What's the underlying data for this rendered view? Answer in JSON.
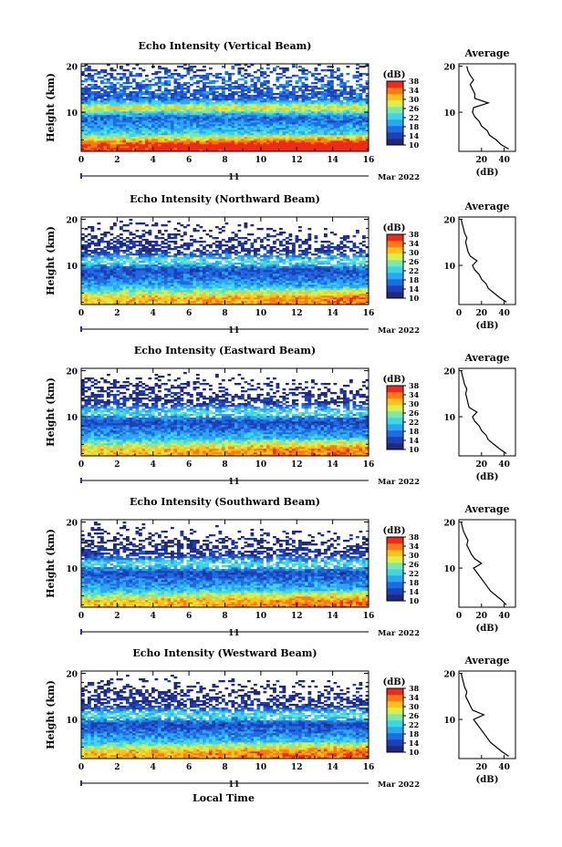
{
  "figure": {
    "xlabel": "Local Time",
    "colorbar_unit": "(dB)",
    "colorbar_ticks": [
      "38",
      "34",
      "30",
      "26",
      "22",
      "18",
      "14",
      "10"
    ],
    "colormap": [
      "#202a7a",
      "#1f3fb8",
      "#1f6be0",
      "#2aa6f2",
      "#3cd6e6",
      "#7be8b0",
      "#d8f04a",
      "#ffc21a",
      "#ff7a10",
      "#f02a1a"
    ],
    "missing_color": "#ffffff"
  },
  "chart_data": [
    {
      "type": "heatmap",
      "title": "Echo Intensity (Vertical Beam)",
      "ylabel": "Height (km)",
      "xlim": [
        0,
        16
      ],
      "ylim": [
        1.5,
        20.5
      ],
      "x_ticks": [
        "0",
        "2",
        "4",
        "6",
        "8",
        "10",
        "12",
        "14",
        "16"
      ],
      "y_ticks": [
        "20",
        "10"
      ],
      "date_label": "11",
      "date_suffix": "Mar 2022",
      "colorbar_range": [
        10,
        38
      ],
      "height_levels_km": [
        3,
        5,
        7,
        9,
        11,
        13,
        15,
        17,
        19
      ],
      "mean_db_by_height": [
        36,
        24,
        19,
        17,
        30,
        16,
        16,
        17,
        14
      ],
      "profile": {
        "title": "Average",
        "xlabel": "(dB)",
        "x_ticks": [
          "20",
          "40"
        ],
        "xlim": [
          0,
          50
        ],
        "heights_km": [
          2,
          3,
          4,
          5,
          6,
          7,
          8,
          9,
          10,
          11,
          12,
          13,
          14,
          15,
          16,
          17,
          18,
          19,
          20
        ],
        "db": [
          44,
          37,
          33,
          27,
          25,
          20,
          18,
          14,
          12,
          13,
          26,
          14,
          14,
          12,
          10,
          13,
          10,
          8,
          7
        ]
      }
    },
    {
      "type": "heatmap",
      "title": "Echo Intensity (Northward Beam)",
      "ylabel": "Height (km)",
      "xlim": [
        0,
        16
      ],
      "ylim": [
        1.5,
        20.5
      ],
      "x_ticks": [
        "0",
        "2",
        "4",
        "6",
        "8",
        "10",
        "12",
        "14",
        "16"
      ],
      "y_ticks": [
        "20",
        "10"
      ],
      "date_label": "11",
      "date_suffix": "Mar 2022",
      "colorbar_range": [
        10,
        38
      ],
      "height_levels_km": [
        3,
        5,
        7,
        9,
        11,
        13,
        15,
        17,
        19
      ],
      "mean_db_by_height": [
        30,
        22,
        18,
        15,
        24,
        13,
        12,
        11,
        10
      ],
      "profile": {
        "title": "Average",
        "xlabel": "(dB)",
        "x_ticks": [
          "0",
          "20",
          "40"
        ],
        "xlim": [
          0,
          50
        ],
        "heights_km": [
          2,
          3,
          4,
          5,
          6,
          7,
          8,
          9,
          10,
          11,
          12,
          13,
          14,
          15,
          16,
          17,
          18,
          19,
          20
        ],
        "db": [
          42,
          36,
          31,
          26,
          24,
          20,
          18,
          14,
          12,
          16,
          10,
          8,
          7,
          6,
          7,
          5,
          4,
          3,
          2
        ]
      }
    },
    {
      "type": "heatmap",
      "title": "Echo Intensity (Eastward Beam)",
      "ylabel": "Height (km)",
      "xlim": [
        0,
        16
      ],
      "ylim": [
        1.5,
        20.5
      ],
      "x_ticks": [
        "0",
        "2",
        "4",
        "6",
        "8",
        "10",
        "12",
        "14",
        "16"
      ],
      "y_ticks": [
        "20",
        "10"
      ],
      "date_label": "11",
      "date_suffix": "Mar 2022",
      "colorbar_range": [
        10,
        38
      ],
      "height_levels_km": [
        3,
        5,
        7,
        9,
        11,
        13,
        15,
        17,
        19
      ],
      "mean_db_by_height": [
        30,
        22,
        18,
        15,
        24,
        13,
        12,
        11,
        10
      ],
      "profile": {
        "title": "Average",
        "xlabel": "(dB)",
        "x_ticks": [
          "20",
          "40"
        ],
        "xlim": [
          0,
          50
        ],
        "heights_km": [
          2,
          3,
          4,
          5,
          6,
          7,
          8,
          9,
          10,
          11,
          12,
          13,
          14,
          15,
          16,
          17,
          18,
          19,
          20
        ],
        "db": [
          42,
          36,
          31,
          26,
          24,
          20,
          18,
          14,
          12,
          16,
          9,
          8,
          7,
          6,
          7,
          5,
          4,
          3,
          2
        ]
      }
    },
    {
      "type": "heatmap",
      "title": "Echo Intensity (Southward Beam)",
      "ylabel": "Height (km)",
      "xlim": [
        0,
        16
      ],
      "ylim": [
        1.5,
        20.5
      ],
      "x_ticks": [
        "0",
        "2",
        "4",
        "6",
        "8",
        "10",
        "12",
        "14",
        "16"
      ],
      "y_ticks": [
        "20",
        "10"
      ],
      "date_label": "11",
      "date_suffix": "Mar 2022",
      "colorbar_range": [
        10,
        38
      ],
      "height_levels_km": [
        3,
        5,
        7,
        9,
        11,
        13,
        15,
        17,
        19
      ],
      "mean_db_by_height": [
        30,
        22,
        18,
        15,
        24,
        13,
        12,
        11,
        10
      ],
      "profile": {
        "title": "Average",
        "xlabel": "(dB)",
        "x_ticks": [
          "0",
          "20",
          "40"
        ],
        "xlim": [
          0,
          50
        ],
        "heights_km": [
          2,
          3,
          4,
          5,
          6,
          7,
          8,
          9,
          10,
          11,
          12,
          13,
          14,
          15,
          16,
          17,
          18,
          19,
          20
        ],
        "db": [
          42,
          38,
          33,
          28,
          25,
          22,
          19,
          16,
          13,
          20,
          14,
          11,
          9,
          7,
          8,
          6,
          4,
          3,
          2
        ]
      }
    },
    {
      "type": "heatmap",
      "title": "Echo Intensity (Westward Beam)",
      "ylabel": "Height (km)",
      "xlim": [
        0,
        16
      ],
      "ylim": [
        1.5,
        20.5
      ],
      "x_ticks": [
        "0",
        "2",
        "4",
        "6",
        "8",
        "10",
        "12",
        "14",
        "16"
      ],
      "y_ticks": [
        "20",
        "10"
      ],
      "date_label": "11",
      "date_suffix": "Mar 2022",
      "colorbar_range": [
        10,
        38
      ],
      "height_levels_km": [
        3,
        5,
        7,
        9,
        11,
        13,
        15,
        17,
        19
      ],
      "mean_db_by_height": [
        31,
        22,
        18,
        15,
        24,
        13,
        12,
        11,
        10
      ],
      "profile": {
        "title": "Average",
        "xlabel": "(dB)",
        "x_ticks": [
          "20",
          "40"
        ],
        "xlim": [
          0,
          50
        ],
        "heights_km": [
          2,
          3,
          4,
          5,
          6,
          7,
          8,
          9,
          10,
          11,
          12,
          13,
          14,
          15,
          16,
          17,
          18,
          19,
          20
        ],
        "db": [
          44,
          38,
          33,
          28,
          25,
          22,
          19,
          16,
          13,
          22,
          12,
          10,
          8,
          6,
          7,
          5,
          4,
          3,
          2
        ]
      }
    }
  ]
}
